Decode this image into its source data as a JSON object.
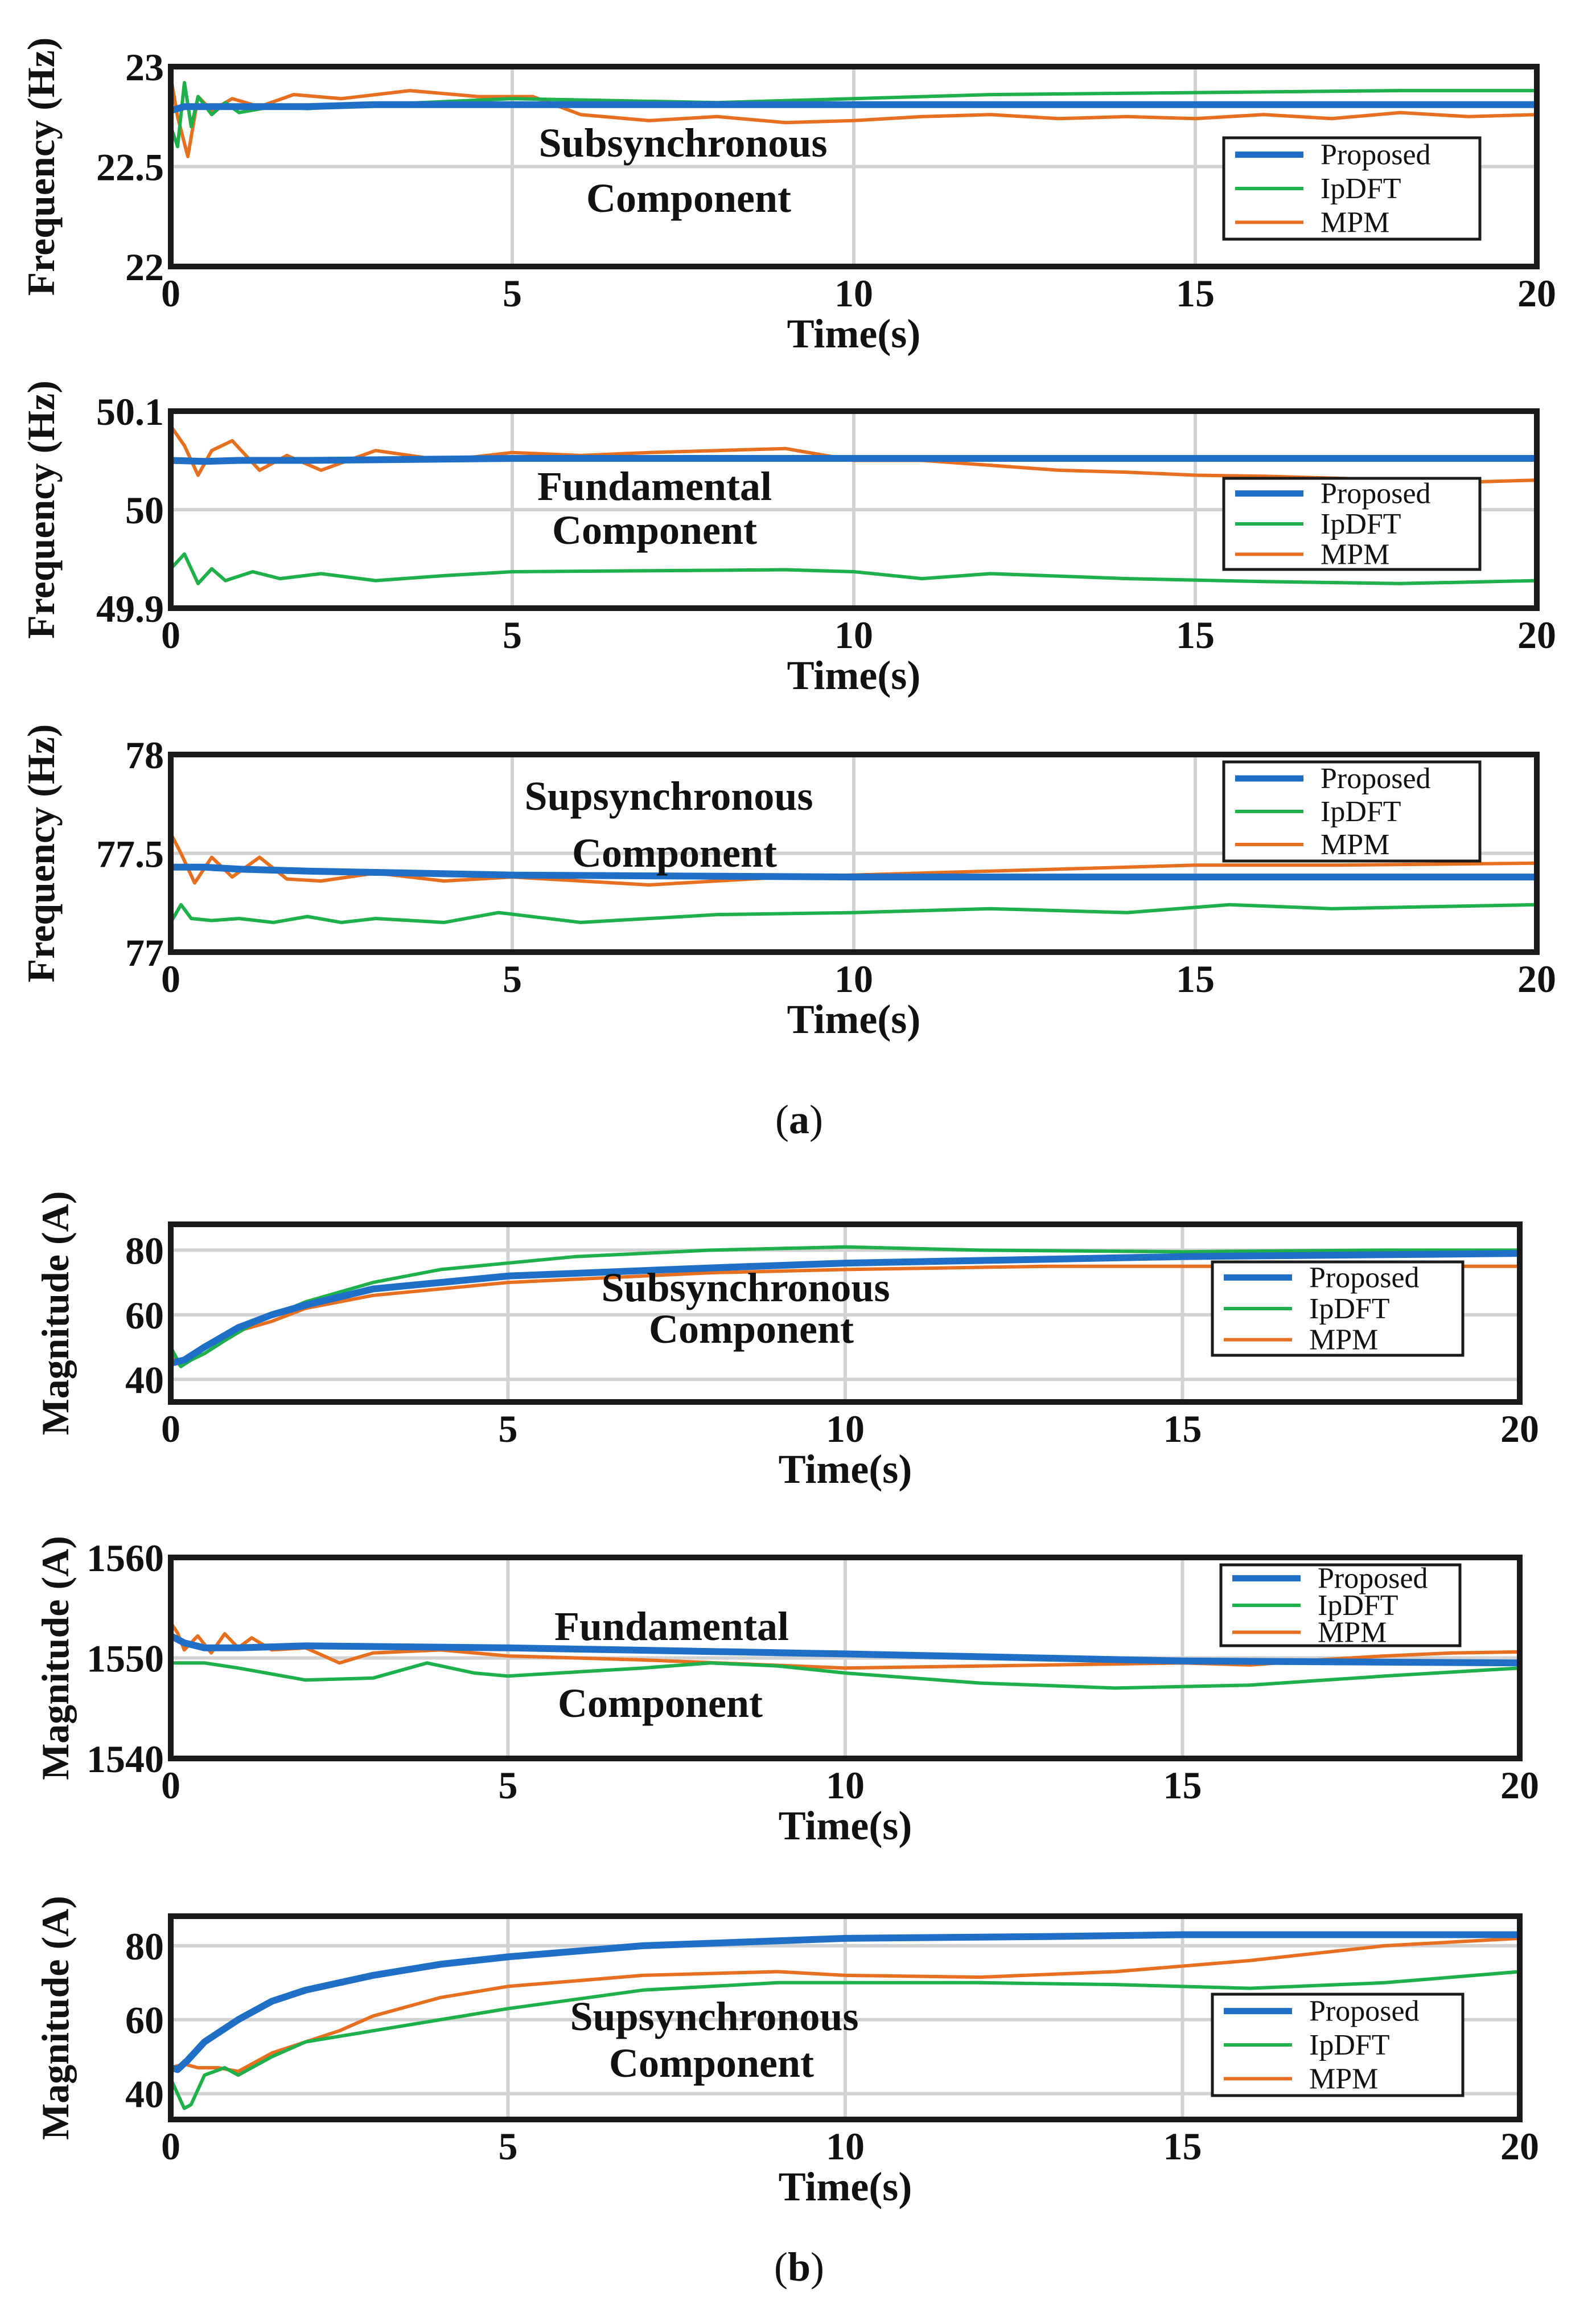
{
  "captions": {
    "a": "a",
    "b": "b"
  },
  "chart_data": [
    {
      "type": "line",
      "ylabel": "Frequency (Hz)",
      "xlabel": "Time(s)",
      "xlim": [
        0,
        20
      ],
      "ylim": [
        22,
        23
      ],
      "xticks": [
        0,
        5,
        10,
        15,
        20
      ],
      "yticks": [
        22,
        22.5,
        23
      ],
      "ytick_labels": [
        "22",
        "22.5",
        "23"
      ],
      "annotation": [
        "Subsynchronous",
        "Component"
      ],
      "legend": [
        "Proposed",
        "IpDFT",
        "MPM"
      ],
      "series": [
        {
          "name": "Proposed",
          "color": "#1f6fc6",
          "x": [
            0,
            0.2,
            0.5,
            1,
            2,
            3,
            5,
            8,
            10,
            12,
            15,
            18,
            20
          ],
          "y": [
            22.78,
            22.8,
            22.8,
            22.8,
            22.8,
            22.81,
            22.81,
            22.81,
            22.81,
            22.81,
            22.81,
            22.81,
            22.81
          ]
        },
        {
          "name": "IpDFT",
          "color": "#1db04b",
          "x": [
            0,
            0.1,
            0.2,
            0.3,
            0.4,
            0.6,
            0.8,
            1,
            1.5,
            2,
            3,
            5,
            8,
            10,
            12,
            15,
            18,
            20
          ],
          "y": [
            22.7,
            22.6,
            22.92,
            22.7,
            22.85,
            22.76,
            22.82,
            22.77,
            22.8,
            22.79,
            22.81,
            22.84,
            22.82,
            22.84,
            22.86,
            22.87,
            22.88,
            22.88
          ]
        },
        {
          "name": "MPM",
          "color": "#e67020",
          "x": [
            0,
            0.1,
            0.25,
            0.4,
            0.6,
            0.9,
            1.3,
            1.8,
            2.5,
            3.5,
            4.5,
            5.3,
            6,
            7,
            8,
            9,
            10,
            11,
            12,
            13,
            14,
            15,
            16,
            17,
            18,
            19,
            20
          ],
          "y": [
            22.95,
            22.75,
            22.55,
            22.85,
            22.78,
            22.84,
            22.8,
            22.86,
            22.84,
            22.88,
            22.85,
            22.85,
            22.76,
            22.73,
            22.75,
            22.72,
            22.73,
            22.75,
            22.76,
            22.74,
            22.75,
            22.74,
            22.76,
            22.74,
            22.77,
            22.75,
            22.76
          ]
        }
      ]
    },
    {
      "type": "line",
      "ylabel": "Frequency (Hz)",
      "xlabel": "Time(s)",
      "xlim": [
        0,
        20
      ],
      "ylim": [
        49.9,
        50.1
      ],
      "xticks": [
        0,
        5,
        10,
        15,
        20
      ],
      "yticks": [
        49.9,
        50,
        50.1
      ],
      "ytick_labels": [
        "49.9",
        "50",
        "50.1"
      ],
      "annotation": [
        "Fundamental",
        "Component"
      ],
      "legend": [
        "Proposed",
        "IpDFT",
        "MPM"
      ],
      "series": [
        {
          "name": "Proposed",
          "color": "#1f6fc6",
          "x": [
            0,
            0.5,
            1,
            2,
            5,
            10,
            15,
            20
          ],
          "y": [
            50.05,
            50.049,
            50.05,
            50.05,
            50.052,
            50.052,
            50.052,
            50.052
          ]
        },
        {
          "name": "IpDFT",
          "color": "#1db04b",
          "x": [
            0,
            0.2,
            0.4,
            0.6,
            0.8,
            1.2,
            1.6,
            2.2,
            3,
            4,
            5,
            7,
            9,
            10,
            11,
            12,
            14,
            16,
            18,
            20
          ],
          "y": [
            49.94,
            49.955,
            49.925,
            49.94,
            49.928,
            49.937,
            49.93,
            49.935,
            49.928,
            49.933,
            49.937,
            49.938,
            49.939,
            49.937,
            49.93,
            49.935,
            49.93,
            49.927,
            49.925,
            49.928
          ]
        },
        {
          "name": "MPM",
          "color": "#e67020",
          "x": [
            0,
            0.2,
            0.4,
            0.6,
            0.9,
            1.3,
            1.7,
            2.2,
            3,
            4,
            5,
            6,
            7,
            8,
            9,
            10,
            11,
            12,
            13,
            14,
            15,
            16,
            17,
            18,
            19,
            20
          ],
          "y": [
            50.085,
            50.065,
            50.035,
            50.06,
            50.07,
            50.04,
            50.055,
            50.04,
            50.06,
            50.05,
            50.058,
            50.055,
            50.058,
            50.06,
            50.062,
            50.05,
            50.05,
            50.045,
            50.04,
            50.038,
            50.035,
            50.034,
            50.032,
            50.03,
            50.028,
            50.03
          ]
        }
      ]
    },
    {
      "type": "line",
      "ylabel": "Frequency (Hz)",
      "xlabel": "Time(s)",
      "xlim": [
        0,
        20
      ],
      "ylim": [
        77,
        78
      ],
      "xticks": [
        0,
        5,
        10,
        15,
        20
      ],
      "yticks": [
        77,
        77.5,
        78
      ],
      "ytick_labels": [
        "77",
        "77.5",
        "78"
      ],
      "annotation": [
        "Supsynchronous",
        "Component"
      ],
      "legend": [
        "Proposed",
        "IpDFT",
        "MPM"
      ],
      "series": [
        {
          "name": "Proposed",
          "color": "#1f6fc6",
          "x": [
            0,
            0.5,
            1,
            2,
            5,
            10,
            15,
            20
          ],
          "y": [
            77.43,
            77.43,
            77.42,
            77.41,
            77.39,
            77.38,
            77.38,
            77.38
          ]
        },
        {
          "name": "IpDFT",
          "color": "#1db04b",
          "x": [
            0,
            0.15,
            0.3,
            0.6,
            1,
            1.5,
            2,
            2.5,
            3,
            4,
            4.8,
            6,
            8,
            10,
            12,
            14,
            15.5,
            17,
            20
          ],
          "y": [
            77.15,
            77.24,
            77.17,
            77.16,
            77.17,
            77.15,
            77.18,
            77.15,
            77.17,
            77.15,
            77.2,
            77.15,
            77.19,
            77.2,
            77.22,
            77.2,
            77.24,
            77.22,
            77.24
          ]
        },
        {
          "name": "MPM",
          "color": "#e67020",
          "x": [
            0,
            0.15,
            0.35,
            0.6,
            0.9,
            1.3,
            1.7,
            2.2,
            3,
            4,
            5,
            7,
            9,
            11,
            13,
            15,
            17,
            20
          ],
          "y": [
            77.6,
            77.5,
            77.35,
            77.48,
            77.38,
            77.48,
            77.37,
            77.36,
            77.4,
            77.36,
            77.38,
            77.34,
            77.38,
            77.4,
            77.42,
            77.44,
            77.44,
            77.45
          ]
        }
      ]
    },
    {
      "type": "line",
      "ylabel": "Magnitude (A)",
      "xlabel": "Time(s)",
      "xlim": [
        0,
        20
      ],
      "ylim": [
        33,
        88
      ],
      "xticks": [
        0,
        5,
        10,
        15,
        20
      ],
      "yticks": [
        40,
        60,
        80
      ],
      "ytick_labels": [
        "40",
        "60",
        "80"
      ],
      "annotation": [
        "Subsynchronous",
        "Component"
      ],
      "legend": [
        "Proposed",
        "IpDFT",
        "MPM"
      ],
      "series": [
        {
          "name": "Proposed",
          "color": "#1f6fc6",
          "x": [
            0,
            0.2,
            0.5,
            1,
            1.5,
            2,
            3,
            5,
            8,
            10,
            15,
            20
          ],
          "y": [
            45,
            46,
            50,
            56,
            60,
            63,
            68,
            72,
            74.5,
            76,
            78,
            79
          ]
        },
        {
          "name": "IpDFT",
          "color": "#1db04b",
          "x": [
            0,
            0.15,
            0.3,
            0.5,
            0.8,
            1.2,
            2,
            3,
            4,
            6,
            8,
            10,
            12,
            15,
            18,
            20
          ],
          "y": [
            50,
            44,
            46,
            48,
            52,
            57,
            64,
            70,
            74,
            78,
            80,
            81,
            80,
            79.5,
            80,
            80
          ]
        },
        {
          "name": "MPM",
          "color": "#e67020",
          "x": [
            0,
            0.15,
            0.3,
            0.5,
            1,
            1.5,
            2,
            3,
            5,
            8,
            10,
            13,
            15,
            20
          ],
          "y": [
            48,
            44,
            47,
            50,
            55,
            58,
            62,
            66,
            70,
            73,
            74,
            75,
            75,
            75
          ]
        }
      ]
    },
    {
      "type": "line",
      "ylabel": "Magnitude (A)",
      "xlabel": "Time(s)",
      "xlim": [
        0,
        20
      ],
      "ylim": [
        1540,
        1560
      ],
      "xticks": [
        0,
        5,
        10,
        15,
        20
      ],
      "yticks": [
        1540,
        1550,
        1560
      ],
      "ytick_labels": [
        "1540",
        "1550",
        "1560"
      ],
      "annotation": [
        "Fundamental",
        "Component"
      ],
      "legend": [
        "Proposed",
        "IpDFT",
        "MPM"
      ],
      "series": [
        {
          "name": "Proposed",
          "color": "#1f6fc6",
          "x": [
            0,
            0.2,
            0.5,
            1,
            2,
            5,
            10,
            15,
            20
          ],
          "y": [
            1552.2,
            1551.5,
            1551,
            1551,
            1551.2,
            1551,
            1550.4,
            1549.7,
            1549.5
          ]
        },
        {
          "name": "IpDFT",
          "color": "#1db04b",
          "x": [
            0,
            0.5,
            1,
            2,
            3,
            3.8,
            4.5,
            5,
            6,
            7,
            8,
            9,
            10,
            12,
            14,
            16,
            18,
            20
          ],
          "y": [
            1549.5,
            1549.5,
            1549,
            1547.8,
            1548,
            1549.5,
            1548.5,
            1548.2,
            1548.6,
            1549,
            1549.5,
            1549.2,
            1548.5,
            1547.5,
            1547,
            1547.3,
            1548.2,
            1549
          ]
        },
        {
          "name": "MPM",
          "color": "#e67020",
          "x": [
            0,
            0.1,
            0.2,
            0.4,
            0.6,
            0.8,
            1,
            1.2,
            1.5,
            2,
            2.5,
            3,
            4,
            5,
            7,
            10,
            13,
            15,
            16,
            17,
            18,
            19,
            20
          ],
          "y": [
            1553.5,
            1552.5,
            1550.8,
            1552.2,
            1550.5,
            1552.4,
            1551,
            1552,
            1550.8,
            1551,
            1549.5,
            1550.5,
            1550.8,
            1550.2,
            1549.8,
            1549,
            1549.3,
            1549.5,
            1549.3,
            1549.8,
            1550.2,
            1550.5,
            1550.6
          ]
        }
      ]
    },
    {
      "type": "line",
      "ylabel": "Magnitude (A)",
      "xlabel": "Time(s)",
      "xlim": [
        0,
        20
      ],
      "ylim": [
        33,
        88
      ],
      "xticks": [
        0,
        5,
        10,
        15,
        20
      ],
      "yticks": [
        40,
        60,
        80
      ],
      "ytick_labels": [
        "40",
        "60",
        "80"
      ],
      "annotation": [
        "Supsynchronous",
        "Component"
      ],
      "legend": [
        "Proposed",
        "IpDFT",
        "MPM"
      ],
      "series": [
        {
          "name": "Proposed",
          "color": "#1f6fc6",
          "x": [
            0,
            0.1,
            0.25,
            0.5,
            1,
            1.5,
            2,
            3,
            4,
            5,
            7,
            10,
            13,
            15,
            18,
            20
          ],
          "y": [
            47,
            46.5,
            49,
            54,
            60,
            65,
            68,
            72,
            75,
            77,
            80,
            82,
            82.5,
            83,
            83,
            83
          ]
        },
        {
          "name": "IpDFT",
          "color": "#1db04b",
          "x": [
            0,
            0.1,
            0.2,
            0.3,
            0.5,
            0.8,
            1,
            1.5,
            2,
            3,
            5,
            7,
            9,
            10,
            12,
            14,
            16,
            18,
            20
          ],
          "y": [
            44,
            40,
            36,
            37,
            45,
            47,
            45,
            50,
            54,
            57,
            63,
            68,
            70,
            70,
            70,
            69.5,
            68.5,
            70,
            73
          ]
        },
        {
          "name": "MPM",
          "color": "#e67020",
          "x": [
            0,
            0.2,
            0.4,
            0.7,
            1,
            1.5,
            2,
            2.5,
            3,
            4,
            5,
            7,
            9,
            10,
            12,
            14,
            16,
            18,
            20
          ],
          "y": [
            47,
            48,
            47,
            47,
            46,
            51,
            54,
            57,
            61,
            66,
            69,
            72,
            73,
            72,
            71.5,
            73,
            76,
            80,
            82
          ]
        }
      ]
    }
  ]
}
